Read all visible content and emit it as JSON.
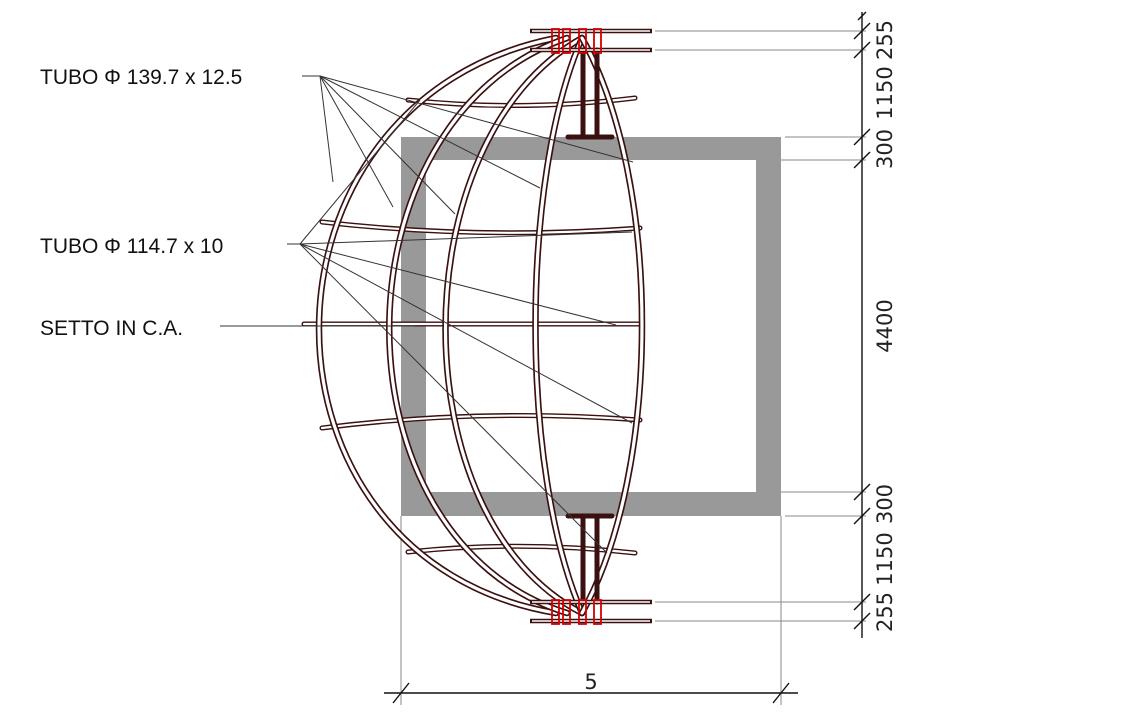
{
  "labels": {
    "tube_large": "TUBO Φ 139.7 x 12.5",
    "tube_small": "TUBO Φ 114.7 x 10",
    "wall": "SETTO IN C.A."
  },
  "dimensions": {
    "horizontal": "5000",
    "vertical": [
      "255",
      "1150",
      "300",
      "4400",
      "300",
      "1150",
      "255"
    ]
  },
  "colors": {
    "wall": "#999999",
    "tube": "#3a1010",
    "joint": "#d40000"
  }
}
